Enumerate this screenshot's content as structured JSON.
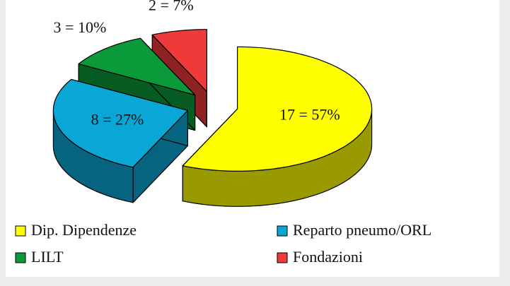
{
  "chart_data": {
    "type": "pie3d",
    "categories": [
      "Dip. Dipendenze",
      "Reparto pneumo/ORL",
      "LILT",
      "Fondazioni"
    ],
    "values": [
      17,
      8,
      3,
      2
    ],
    "value_labels": [
      "17 = 57%",
      "8 = 27%",
      "3 = 10%",
      "2 = 7%"
    ],
    "colors": [
      "#ffff00",
      "#0aa6d6",
      "#0a9a3a",
      "#ee3a3a"
    ],
    "legend": "bottom"
  }
}
